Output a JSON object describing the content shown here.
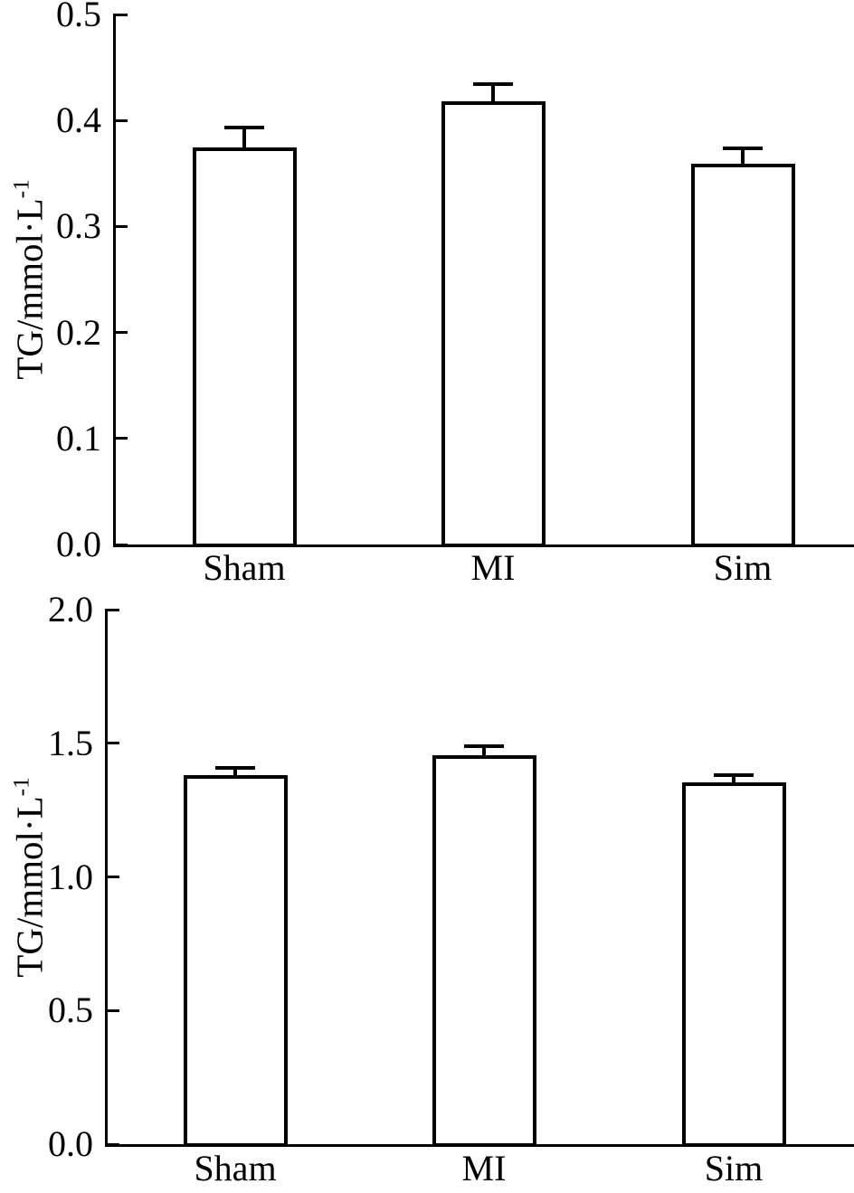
{
  "page": {
    "background": "#ffffff",
    "line_color": "#000000",
    "bar_fill": "#ffffff"
  },
  "chart_data": [
    {
      "type": "bar",
      "title": "",
      "xlabel": "",
      "ylabel": "TG/mmol·L⁻¹",
      "ylabel_base": "TG/mmol·L",
      "ylabel_sup": "-1",
      "categories": [
        "Sham",
        "MI",
        "Sim"
      ],
      "values": [
        0.375,
        0.418,
        0.359
      ],
      "errors": [
        0.018,
        0.016,
        0.015
      ],
      "ylim": [
        0.0,
        0.5
      ],
      "ytick_values": [
        0.0,
        0.1,
        0.2,
        0.3,
        0.4,
        0.5
      ],
      "yticklabels": [
        "0.0",
        "0.1",
        "0.2",
        "0.3",
        "0.4",
        "0.5"
      ],
      "grid": "off",
      "legend": "none",
      "bar_fill": "#ffffff",
      "bar_border": "#000000"
    },
    {
      "type": "bar",
      "title": "",
      "xlabel": "",
      "ylabel": "TG/mmol·L⁻¹",
      "ylabel_base": "TG/mmol·L",
      "ylabel_sup": "-1",
      "categories": [
        "Sham",
        "MI",
        "Sim"
      ],
      "values": [
        1.38,
        1.455,
        1.355
      ],
      "errors": [
        0.027,
        0.034,
        0.027
      ],
      "ylim": [
        0.0,
        2.0
      ],
      "ytick_values": [
        0.0,
        0.5,
        1.0,
        1.5,
        2.0
      ],
      "yticklabels": [
        "0.0",
        "0.5",
        "1.0",
        "1.5",
        "2.0"
      ],
      "grid": "off",
      "legend": "none",
      "bar_fill": "#ffffff",
      "bar_border": "#000000"
    }
  ]
}
